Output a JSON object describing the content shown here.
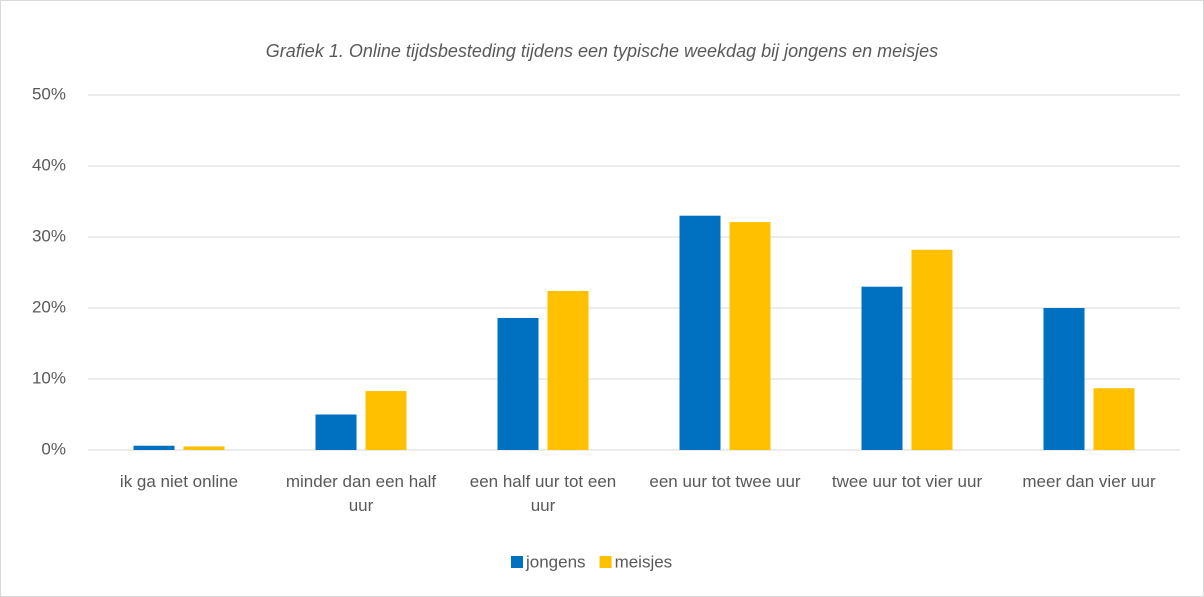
{
  "chart_data": {
    "type": "bar",
    "title": "Grafiek 1. Online tijdsbesteding tijdens een typische weekdag bij jongens en meisjes",
    "categories": [
      "ik ga niet online",
      "minder dan een half uur",
      "een half uur tot een uur",
      "een uur tot twee uur",
      "twee uur tot vier uur",
      "meer dan vier uur"
    ],
    "series": [
      {
        "name": "jongens",
        "color": "#0070c0",
        "values": [
          0.6,
          5,
          18.6,
          33,
          23,
          20
        ]
      },
      {
        "name": "meisjes",
        "color": "#ffc000",
        "values": [
          0.5,
          8.3,
          22.4,
          32.1,
          28.2,
          8.7
        ]
      }
    ],
    "ylim": [
      0,
      50
    ],
    "yticks": [
      {
        "value": 0,
        "label": "0%"
      },
      {
        "value": 10,
        "label": "10%"
      },
      {
        "value": 20,
        "label": "20%"
      },
      {
        "value": 30,
        "label": "30%"
      },
      {
        "value": 40,
        "label": "40%"
      },
      {
        "value": 50,
        "label": "50%"
      }
    ],
    "grid": true,
    "legend": "bottom"
  }
}
